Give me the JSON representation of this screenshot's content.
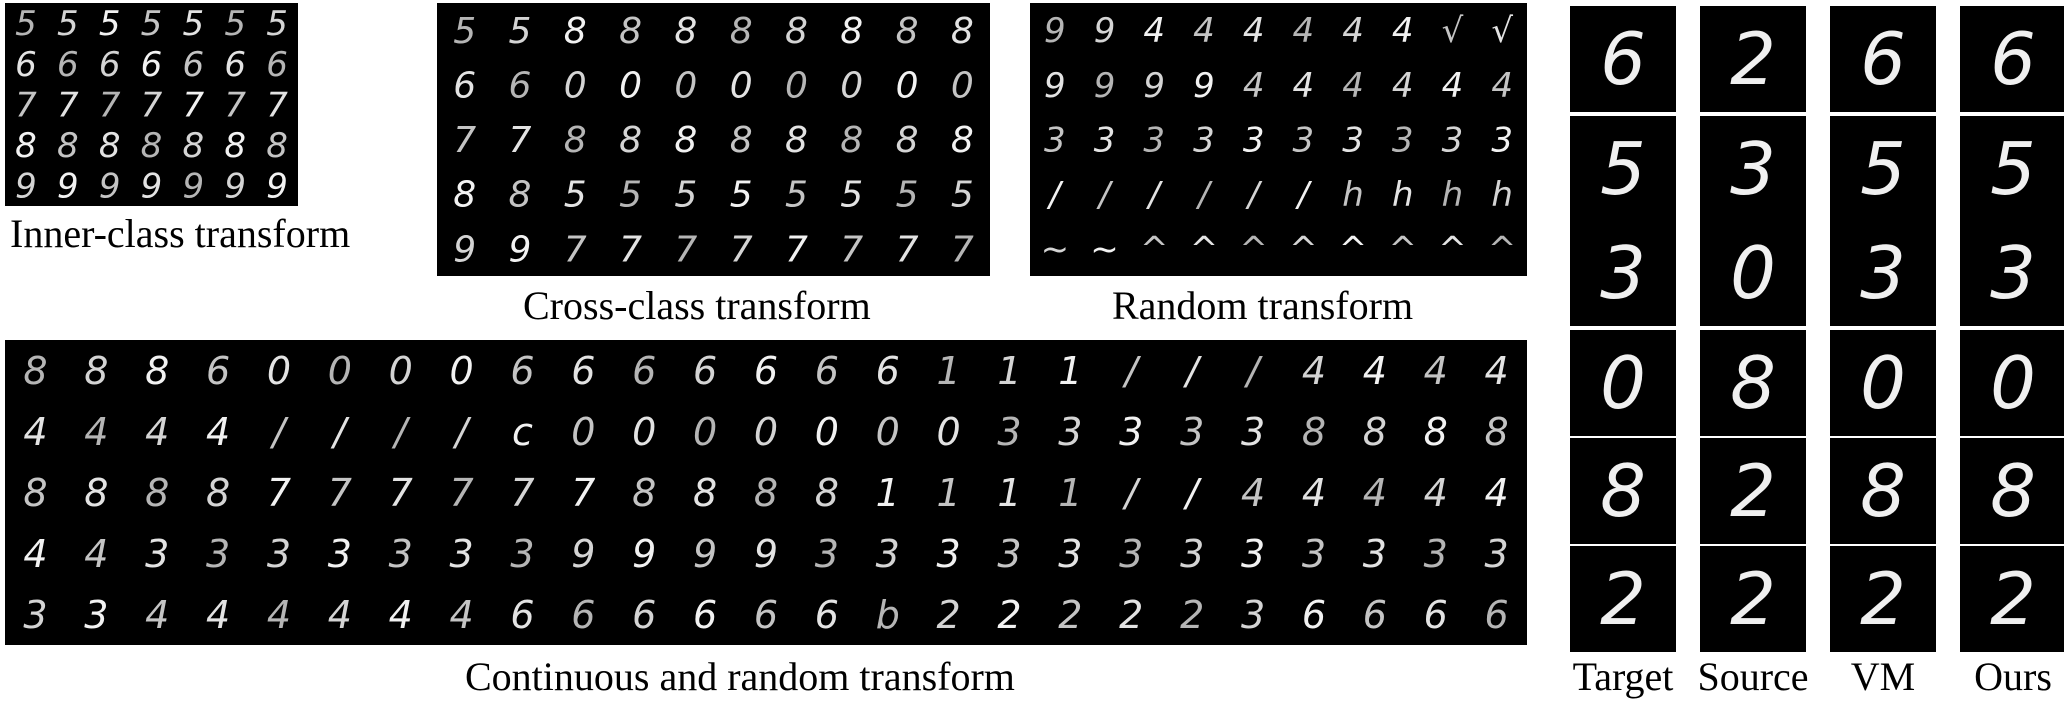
{
  "panels": {
    "inner_class": {
      "caption": "Inner-class transform",
      "rows": [
        "5",
        "6",
        "7",
        "8",
        "9"
      ],
      "cols": 7
    },
    "cross_class": {
      "caption": "Cross-class transform",
      "rows": [
        [
          "5",
          "5",
          "8",
          "8",
          "8",
          "8",
          "8",
          "8",
          "8",
          "8"
        ],
        [
          "6",
          "6",
          "0",
          "0",
          "0",
          "0",
          "0",
          "0",
          "0",
          "0"
        ],
        [
          "7",
          "7",
          "8",
          "8",
          "8",
          "8",
          "8",
          "8",
          "8",
          "8"
        ],
        [
          "8",
          "8",
          "5",
          "5",
          "5",
          "5",
          "5",
          "5",
          "5",
          "5"
        ],
        [
          "9",
          "9",
          "7",
          "7",
          "7",
          "7",
          "7",
          "7",
          "7",
          "7"
        ]
      ]
    },
    "random": {
      "caption": "Random transform",
      "rows": [
        [
          "9",
          "9",
          "4",
          "4",
          "4",
          "4",
          "4",
          "4",
          "√",
          "√"
        ],
        [
          "9",
          "9",
          "9",
          "9",
          "4",
          "4",
          "4",
          "4",
          "4",
          "4"
        ],
        [
          "3",
          "3",
          "3",
          "3",
          "3",
          "3",
          "3",
          "3",
          "3",
          "3"
        ],
        [
          "/",
          "/",
          "/",
          "/",
          "/",
          "/",
          "h",
          "h",
          "h",
          "h"
        ],
        [
          "~",
          "~",
          "^",
          "^",
          "^",
          "^",
          "^",
          "^",
          "^",
          "^"
        ]
      ]
    },
    "continuous": {
      "caption": "Continuous and random transform",
      "rows": [
        [
          "8",
          "8",
          "8",
          "6",
          "0",
          "0",
          "0",
          "0",
          "6",
          "6",
          "6",
          "6",
          "6",
          "6",
          "6",
          "1",
          "1",
          "1",
          "/",
          "/",
          "/",
          "4",
          "4",
          "4",
          "4"
        ],
        [
          "4",
          "4",
          "4",
          "4",
          "/",
          "/",
          "/",
          "/",
          "c",
          "0",
          "0",
          "0",
          "0",
          "0",
          "0",
          "0",
          "3",
          "3",
          "3",
          "3",
          "3",
          "8",
          "8",
          "8",
          "8"
        ],
        [
          "8",
          "8",
          "8",
          "8",
          "7",
          "7",
          "7",
          "7",
          "7",
          "7",
          "8",
          "8",
          "8",
          "8",
          "1",
          "1",
          "1",
          "1",
          "/",
          "/",
          "4",
          "4",
          "4",
          "4",
          "4"
        ],
        [
          "4",
          "4",
          "3",
          "3",
          "3",
          "3",
          "3",
          "3",
          "3",
          "9",
          "9",
          "9",
          "9",
          "3",
          "3",
          "3",
          "3",
          "3",
          "3",
          "3",
          "3",
          "3",
          "3",
          "3",
          "3"
        ],
        [
          "3",
          "3",
          "4",
          "4",
          "4",
          "4",
          "4",
          "4",
          "6",
          "6",
          "6",
          "6",
          "6",
          "6",
          "b",
          "2",
          "2",
          "2",
          "2",
          "2",
          "3",
          "6",
          "6",
          "6",
          "6"
        ]
      ]
    }
  },
  "comparison": {
    "columns": [
      {
        "label": "Target",
        "digits": [
          "6",
          "5",
          "3",
          "0",
          "8",
          "2"
        ]
      },
      {
        "label": "Source",
        "digits": [
          "2",
          "3",
          "0",
          "8",
          "2",
          "2"
        ]
      },
      {
        "label": "VM",
        "digits": [
          "6",
          "5",
          "3",
          "0",
          "8",
          "2"
        ]
      },
      {
        "label": "Ours",
        "digits": [
          "6",
          "5",
          "3",
          "0",
          "8",
          "2"
        ]
      }
    ]
  }
}
